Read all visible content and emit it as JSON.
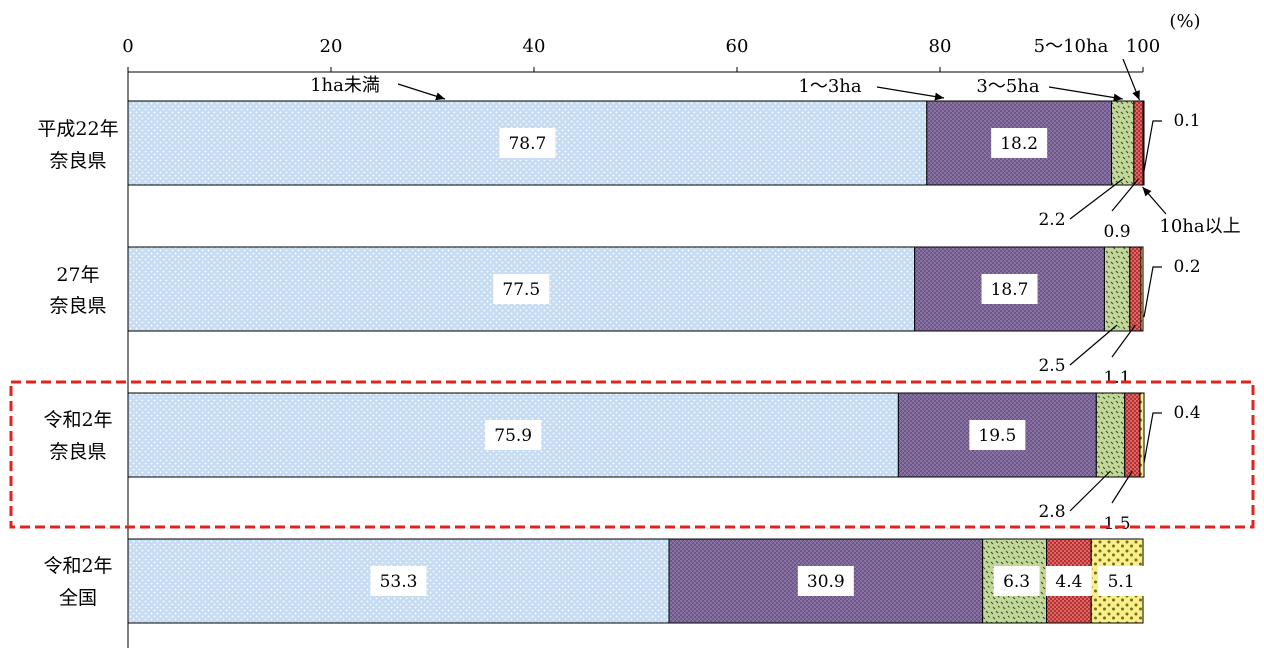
{
  "chart_data": {
    "type": "bar",
    "orientation": "horizontal",
    "stacked": true,
    "unit": "(%)",
    "xlim": [
      0,
      100
    ],
    "xticks": [
      "0",
      "20",
      "40",
      "60",
      "80",
      "100"
    ],
    "rows": [
      {
        "label": [
          "平成22年",
          "奈良県"
        ],
        "values": [
          78.7,
          18.2,
          2.2,
          0.9,
          0.1
        ]
      },
      {
        "label": [
          "27年",
          "奈良県"
        ],
        "values": [
          77.5,
          18.7,
          2.5,
          1.1,
          0.2
        ]
      },
      {
        "label": [
          "令和2年",
          "奈良県"
        ],
        "values": [
          75.9,
          19.5,
          2.8,
          1.5,
          0.4
        ],
        "highlighted": true
      },
      {
        "label": [
          "令和2年",
          "全国"
        ],
        "values": [
          53.3,
          30.9,
          6.3,
          4.4,
          5.1
        ]
      }
    ],
    "series": [
      {
        "name": "1ha未満",
        "color": "#c6dcf2"
      },
      {
        "name": "1～3ha",
        "color": "#7d6699"
      },
      {
        "name": "3～5ha",
        "color": "#c3d69b"
      },
      {
        "name": "5～10ha",
        "color": "#e06666"
      },
      {
        "name": "10ha以上",
        "color": "#f7ef8a"
      }
    ],
    "highlight_color": "#e0231d"
  }
}
